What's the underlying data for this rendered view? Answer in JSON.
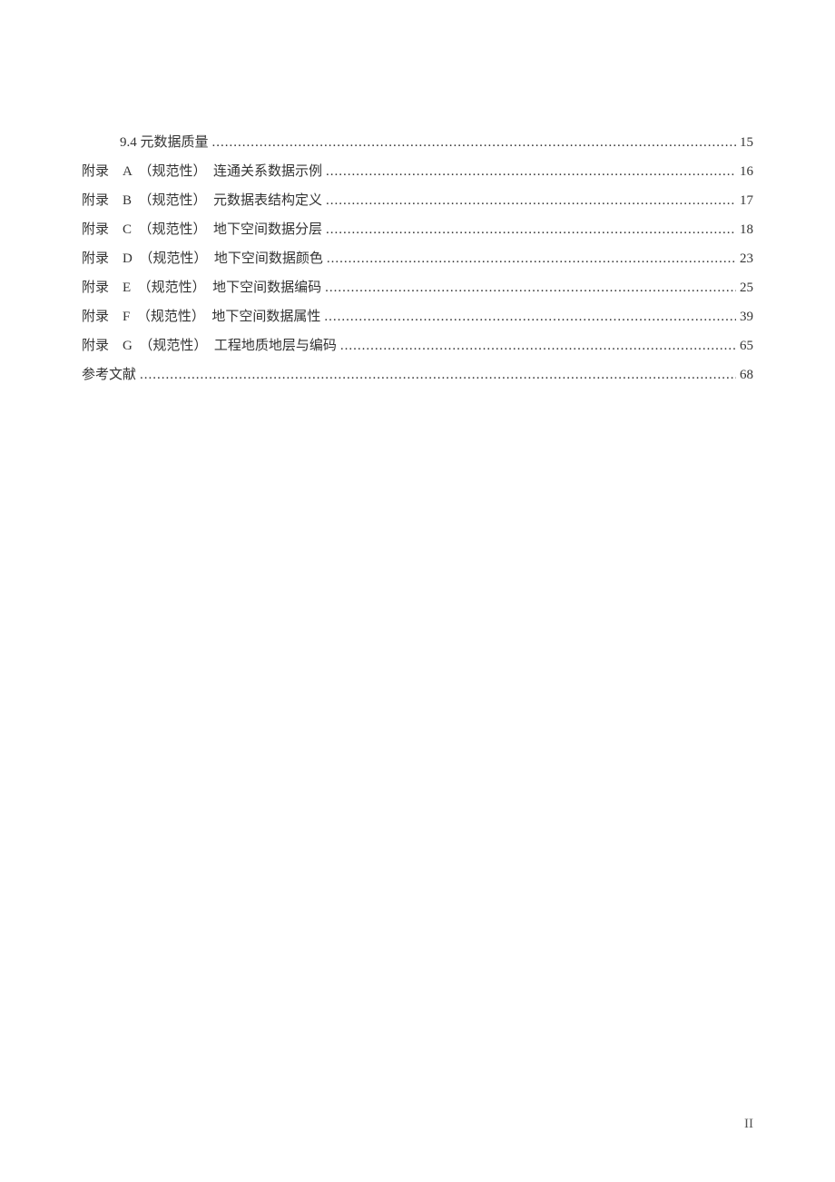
{
  "toc": [
    {
      "label": "9.4 元数据质量",
      "page": "15",
      "indent": true
    },
    {
      "label": "附录　A　（规范性）　连通关系数据示例",
      "page": "16",
      "indent": false
    },
    {
      "label": "附录　B　（规范性）　元数据表结构定义",
      "page": "17",
      "indent": false
    },
    {
      "label": "附录　C　（规范性）　地下空间数据分层",
      "page": "18",
      "indent": false
    },
    {
      "label": "附录　D　（规范性）　地下空间数据颜色",
      "page": "23",
      "indent": false
    },
    {
      "label": "附录　E　（规范性）　地下空间数据编码",
      "page": "25",
      "indent": false
    },
    {
      "label": "附录　F　（规范性）　地下空间数据属性",
      "page": "39",
      "indent": false
    },
    {
      "label": "附录　G　（规范性）　工程地质地层与编码",
      "page": "65",
      "indent": false
    },
    {
      "label": "参考文献",
      "page": "68",
      "indent": false
    }
  ],
  "footer": {
    "page_number": "II"
  },
  "style": {
    "text_color": "#333333",
    "font_size_pt": 11,
    "background": "#ffffff"
  }
}
